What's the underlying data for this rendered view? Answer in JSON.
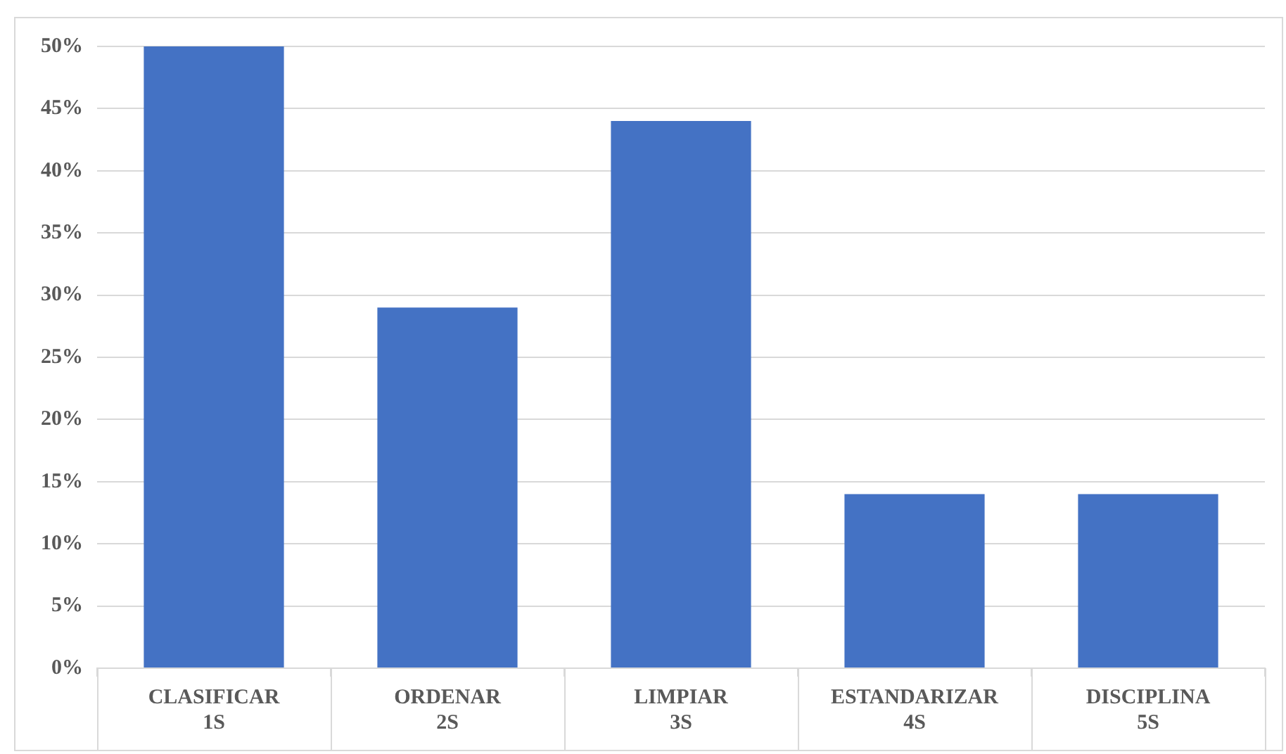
{
  "chart_data": {
    "type": "bar",
    "categories": [
      "CLASIFICAR\n1S",
      "ORDENAR\n2S",
      "LIMPIAR\n3S",
      "ESTANDARIZAR\n4S",
      "DISCIPLINA\n5S"
    ],
    "values": [
      50,
      29,
      44,
      14,
      14
    ],
    "color": "#4472c4",
    "ylim": [
      0,
      50
    ],
    "yticks": [
      {
        "value": 0,
        "label": "0%"
      },
      {
        "value": 5,
        "label": "5%"
      },
      {
        "value": 10,
        "label": "10%"
      },
      {
        "value": 15,
        "label": "15%"
      },
      {
        "value": 20,
        "label": "20%"
      },
      {
        "value": 25,
        "label": "25%"
      },
      {
        "value": 30,
        "label": "30%"
      },
      {
        "value": 35,
        "label": "35%"
      },
      {
        "value": 40,
        "label": "40%"
      },
      {
        "value": 45,
        "label": "45%"
      },
      {
        "value": 50,
        "label": "50%"
      }
    ],
    "grid": "y",
    "legend": false
  }
}
